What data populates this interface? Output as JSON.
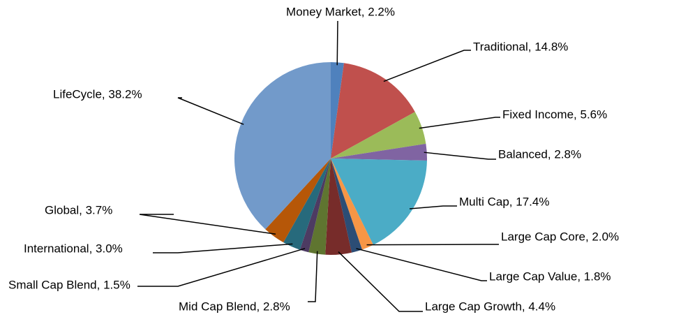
{
  "chart_data": {
    "type": "pie",
    "categories": [
      "Money Market",
      "Traditional",
      "Fixed Income",
      "Balanced",
      "Multi Cap",
      "Large Cap Core",
      "Large Cap Value",
      "Large Cap Growth",
      "Mid Cap Blend",
      "Small Cap Blend",
      "International",
      "Global",
      "LifeCycle"
    ],
    "values": [
      2.2,
      14.8,
      5.6,
      2.8,
      17.4,
      2.0,
      1.8,
      4.4,
      2.8,
      1.5,
      3.0,
      3.7,
      38.2
    ],
    "value_labels": [
      "Money Market, 2.2%",
      "Traditional, 14.8%",
      "Fixed Income, 5.6%",
      "Balanced, 2.8%",
      "Multi Cap, 17.4%",
      "Large Cap Core, 2.0%",
      "Large Cap Value, 1.8%",
      "Large Cap Growth, 4.4%",
      "Mid Cap Blend, 2.8%",
      "Small Cap Blend, 1.5%",
      "International, 3.0%",
      "Global, 3.7%",
      "LifeCycle, 38.2%"
    ],
    "colors": [
      "#4f81bd",
      "#c0504d",
      "#9bbb59",
      "#8064a2",
      "#4bacc6",
      "#f79646",
      "#2c4d75",
      "#772c2a",
      "#5f7530",
      "#4d3b62",
      "#276a7c",
      "#b65708",
      "#729aca"
    ]
  }
}
